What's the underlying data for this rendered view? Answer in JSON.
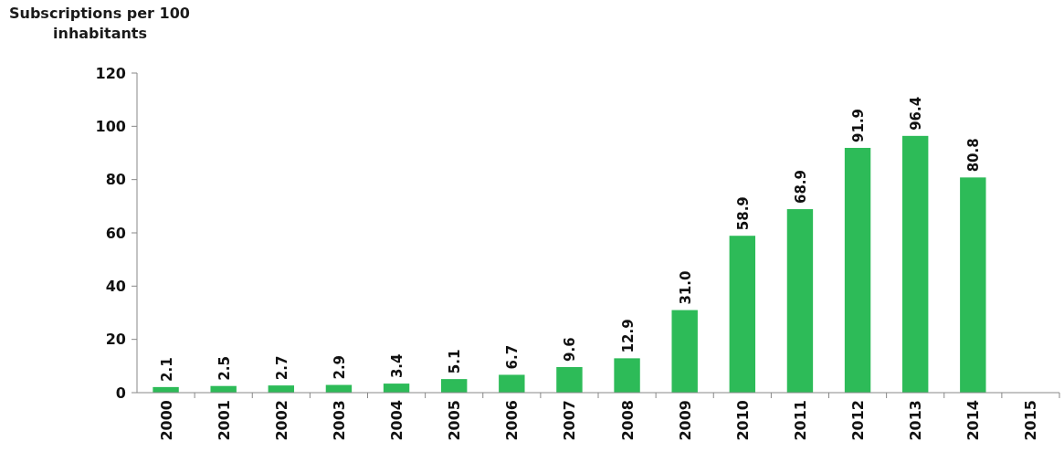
{
  "chart_data": {
    "type": "bar",
    "ylabel": "Subscriptions per 100 inhabitants",
    "categories": [
      "2000",
      "2001",
      "2002",
      "2003",
      "2004",
      "2005",
      "2006",
      "2007",
      "2008",
      "2009",
      "2010",
      "2011",
      "2012",
      "2013",
      "2014",
      "2015"
    ],
    "values": [
      2.1,
      2.5,
      2.7,
      2.9,
      3.4,
      5.1,
      6.7,
      9.6,
      12.9,
      31.0,
      58.9,
      68.9,
      91.9,
      96.4,
      80.8,
      null
    ],
    "value_labels": [
      "2.1",
      "2.5",
      "2.7",
      "2.9",
      "3.4",
      "5.1",
      "6.7",
      "9.6",
      "12.9",
      "31.0",
      "58.9",
      "68.9",
      "91.9",
      "96.4",
      "80.8",
      null
    ],
    "color": "#2dbb58",
    "ylim": [
      0,
      120
    ],
    "yticks": [
      0,
      20,
      40,
      60,
      80,
      100,
      120
    ]
  }
}
